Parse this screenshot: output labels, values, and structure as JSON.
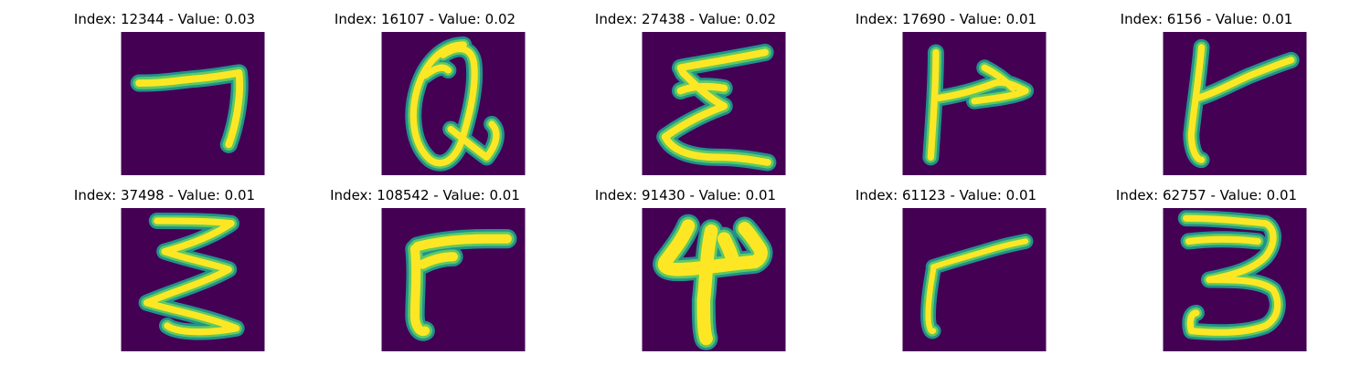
{
  "figure": {
    "colors": {
      "background": "#440154",
      "stroke_edge": "#21918c",
      "stroke_mid": "#5ec962",
      "stroke_core": "#fde725"
    },
    "panels": [
      {
        "title": "Index: 12344 - Value: 0.03",
        "glyph": "handwritten character resembling 7"
      },
      {
        "title": "Index: 16107 - Value: 0.02",
        "glyph": "handwritten character resembling Q"
      },
      {
        "title": "Index: 27438 - Value: 0.02",
        "glyph": "handwritten character resembling Σ"
      },
      {
        "title": "Index: 17690 - Value: 0.01",
        "glyph": "handwritten character resembling P"
      },
      {
        "title": "Index: 6156 - Value: 0.01",
        "glyph": "handwritten character resembling t"
      },
      {
        "title": "Index: 37498 - Value: 0.01",
        "glyph": "handwritten character resembling ≷"
      },
      {
        "title": "Index: 108542 - Value: 0.01",
        "glyph": "handwritten character resembling r"
      },
      {
        "title": "Index: 91430 - Value: 0.01",
        "glyph": "handwritten character resembling 4"
      },
      {
        "title": "Index: 61123 - Value: 0.01",
        "glyph": "handwritten character resembling r"
      },
      {
        "title": "Index: 62757 - Value: 0.01",
        "glyph": "handwritten character resembling 3"
      }
    ]
  }
}
